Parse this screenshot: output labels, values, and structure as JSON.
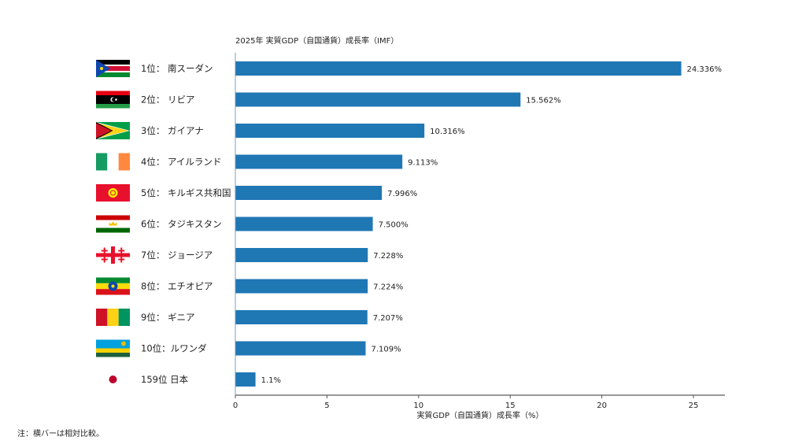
{
  "chart_data": {
    "type": "bar",
    "orientation": "horizontal",
    "title": "2025年 実質GDP（自国通貨）成長率（IMF）",
    "xlabel": "実質GDP（自国通貨）成長率（%）",
    "ylabel": "",
    "xlim": [
      0,
      26.8
    ],
    "xticks": [
      0,
      5,
      10,
      15,
      20,
      25
    ],
    "grid": false,
    "bar_color": "#1f77b4",
    "categories": [
      "1位： 南スーダン",
      "2位： リビア",
      "3位： ガイアナ",
      "4位： アイルランド",
      "5位： キルギス共和国",
      "6位： タジキスタン",
      "7位： ジョージア",
      "8位： エチオピア",
      "9位： ギニア",
      "10位：ルワンダ",
      "159位 日本"
    ],
    "values": [
      24.336,
      15.562,
      10.316,
      9.113,
      7.996,
      7.5,
      7.228,
      7.224,
      7.207,
      7.109,
      1.1
    ],
    "value_labels": [
      "24.336%",
      "15.562%",
      "10.316%",
      "9.113%",
      "7.996%",
      "7.500%",
      "7.228%",
      "7.224%",
      "7.207%",
      "7.109%",
      "1.1%"
    ],
    "flags": [
      "south-sudan-flag",
      "libya-flag",
      "guyana-flag",
      "ireland-flag",
      "kyrgyzstan-flag",
      "tajikistan-flag",
      "georgia-flag",
      "ethiopia-flag",
      "guinea-flag",
      "rwanda-flag",
      "japan-flag"
    ]
  },
  "note": "注：横バーは相対比較。"
}
